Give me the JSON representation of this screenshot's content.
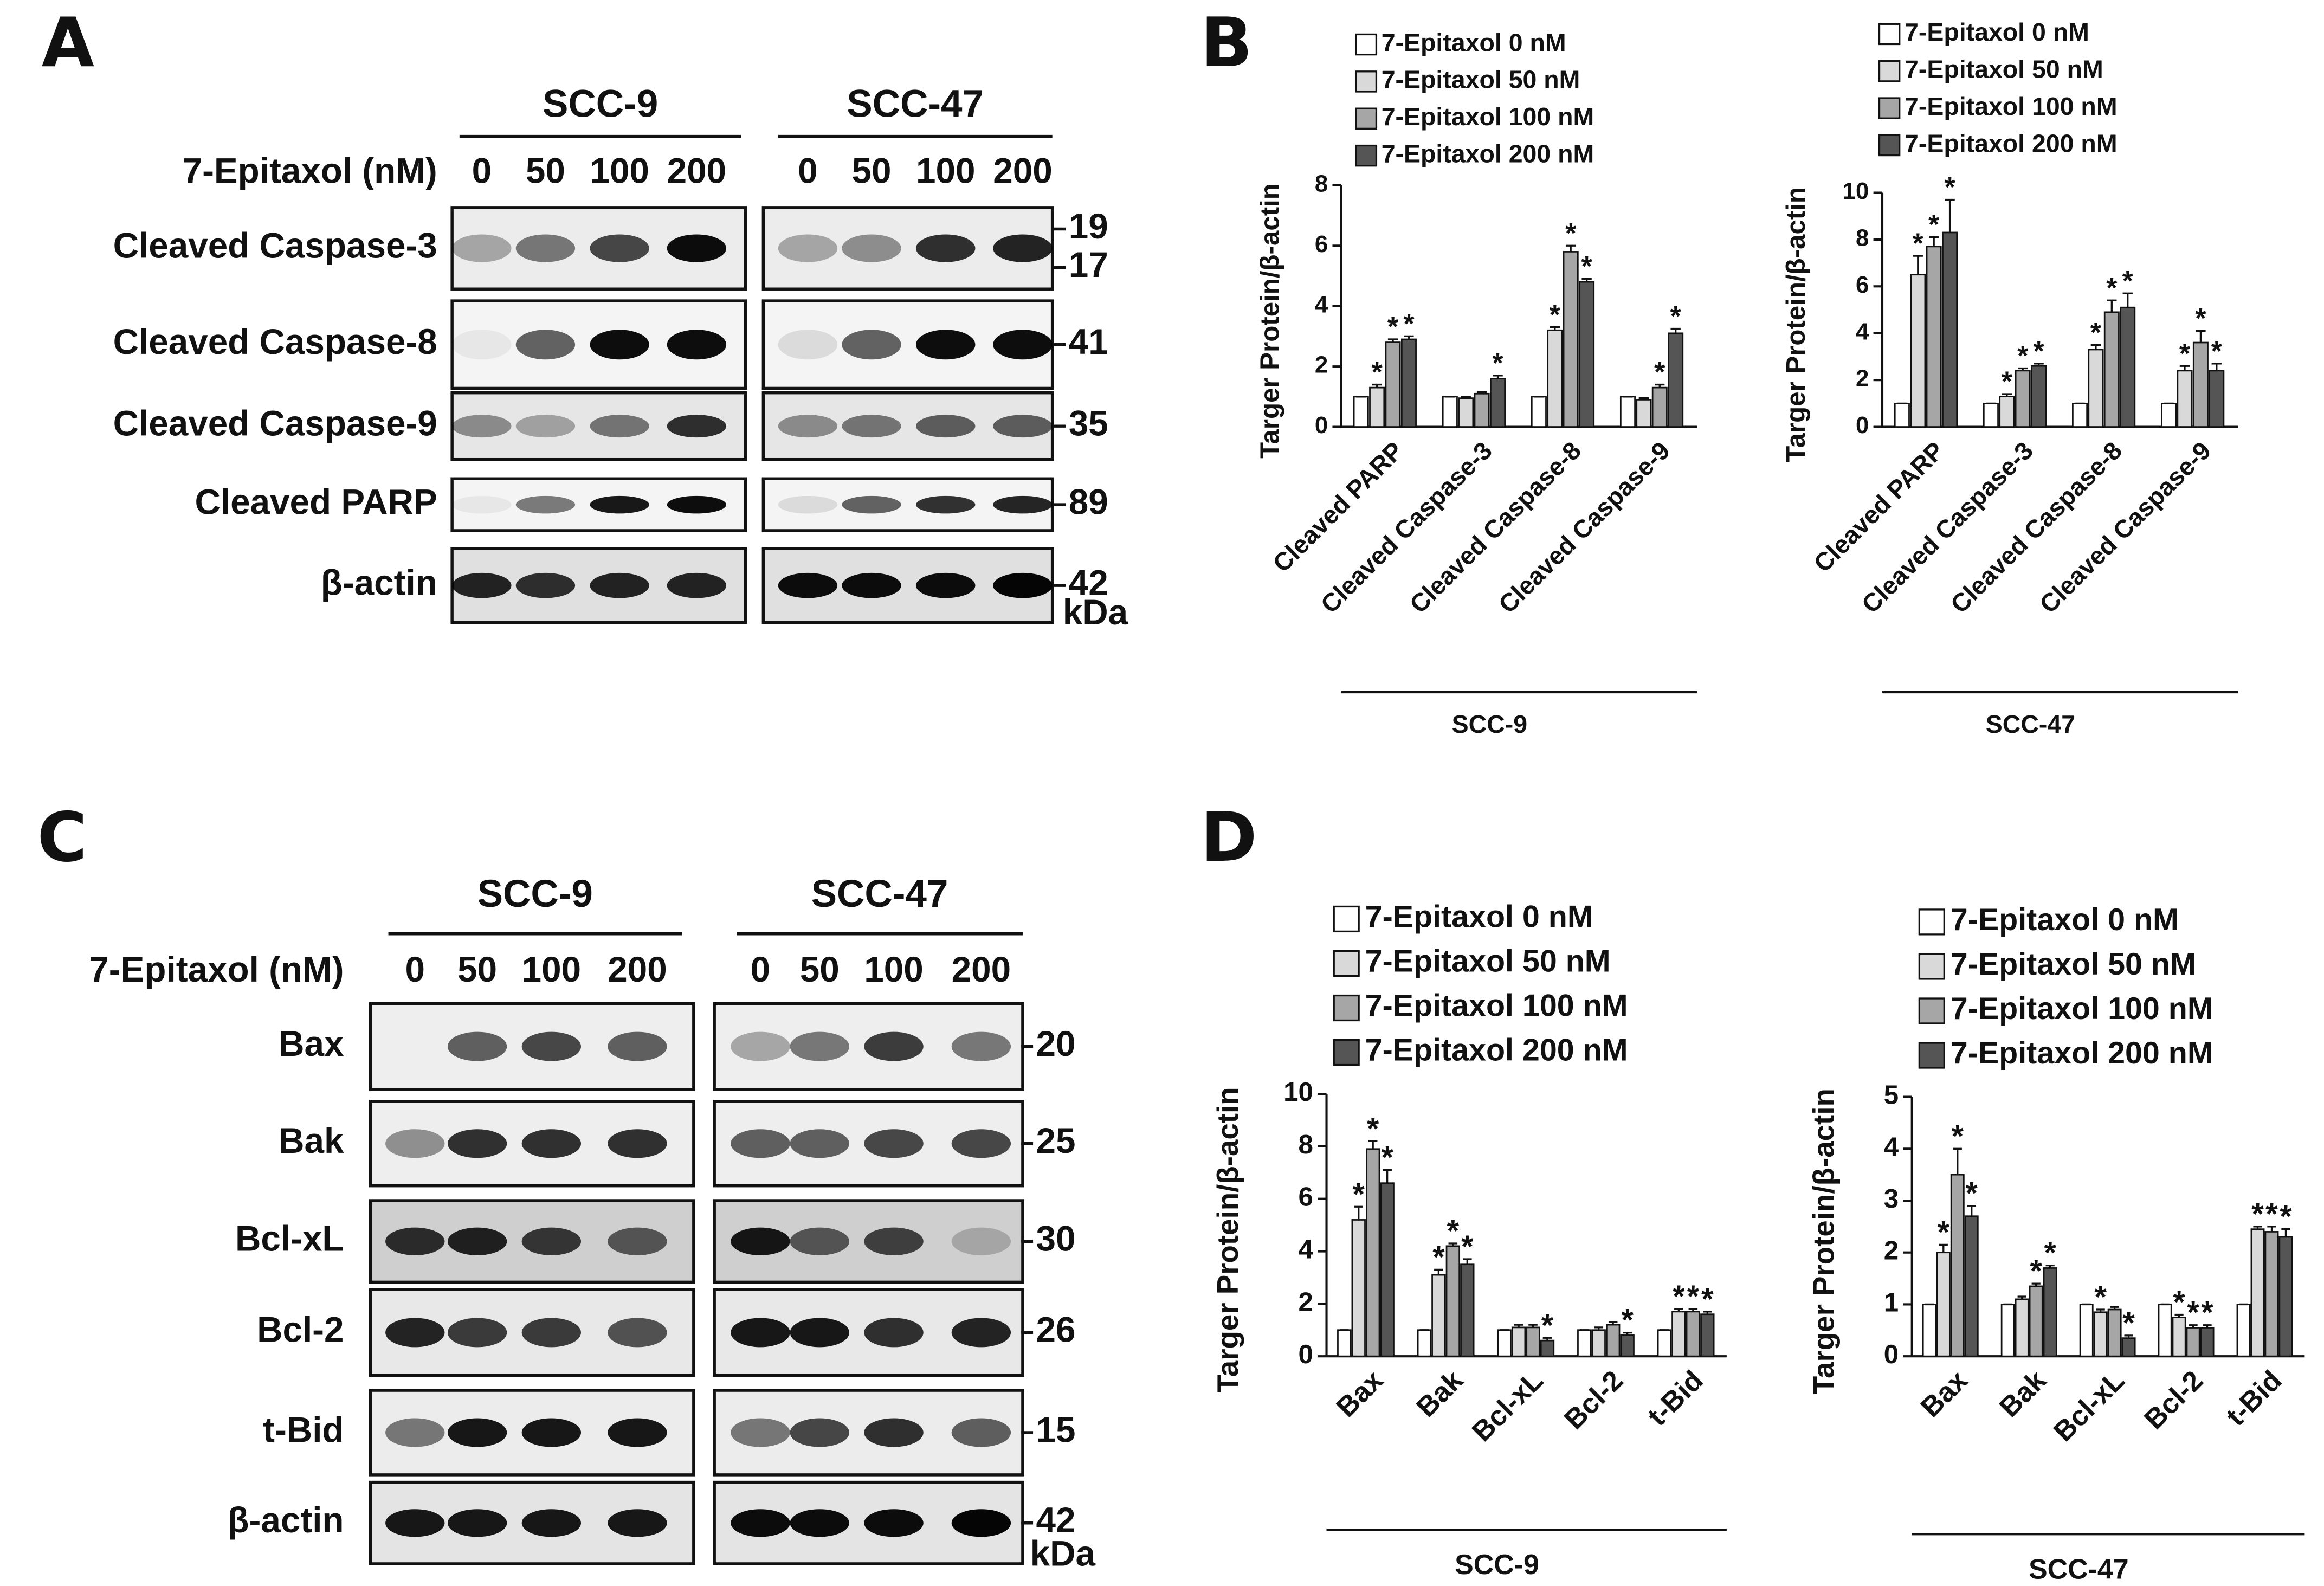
{
  "blots": [
    {
      "panel": "A",
      "cell_lines": [
        "SCC-9",
        "SCC-47"
      ],
      "treatment": "7-Epitaxol (nM)",
      "doses": [
        "0",
        "50",
        "100",
        "200"
      ],
      "rows": [
        {
          "name": "Cleaved Caspase-3",
          "markers": [
            "19",
            "17"
          ]
        },
        {
          "name": "Cleaved Caspase-8",
          "markers": [
            "41"
          ]
        },
        {
          "name": "Cleaved Caspase-9",
          "markers": [
            "35"
          ]
        },
        {
          "name": "Cleaved PARP",
          "markers": [
            "89"
          ]
        },
        {
          "name": "β-actin",
          "markers": [
            "42"
          ]
        }
      ],
      "unit": "kDa"
    },
    {
      "panel": "C",
      "cell_lines": [
        "SCC-9",
        "SCC-47"
      ],
      "treatment": "7-Epitaxol (nM)",
      "doses": [
        "0",
        "50",
        "100",
        "200"
      ],
      "rows": [
        {
          "name": "Bax",
          "markers": [
            "20"
          ]
        },
        {
          "name": "Bak",
          "markers": [
            "25"
          ]
        },
        {
          "name": "Bcl-xL",
          "markers": [
            "30"
          ]
        },
        {
          "name": "Bcl-2",
          "markers": [
            "26"
          ]
        },
        {
          "name": "t-Bid",
          "markers": [
            "15"
          ]
        },
        {
          "name": "β-actin",
          "markers": [
            "42"
          ]
        }
      ],
      "unit": "kDa"
    }
  ],
  "chart_data": [
    {
      "type": "bar",
      "panel": "B",
      "ylabel": "Targer Protein/β-actin",
      "xlabel": "SCC-9",
      "categories": [
        "Cleaved PARP",
        "Cleaved Caspase-3",
        "Cleaved Caspase-8",
        "Cleaved Caspase-9"
      ],
      "series": [
        {
          "name": "7-Epitaxol 0 nM",
          "color": "#ffffff",
          "values": [
            1,
            1,
            1,
            1
          ],
          "errors": [
            0,
            0,
            0,
            0
          ],
          "stars": [
            null,
            null,
            null,
            null
          ]
        },
        {
          "name": "7-Epitaxol 50 nM",
          "color": "#d9d9d9",
          "values": [
            1.3,
            0.95,
            3.2,
            0.9
          ],
          "errors": [
            0.1,
            0.05,
            0.1,
            0.05
          ],
          "stars": [
            "*",
            null,
            "*",
            null
          ]
        },
        {
          "name": "7-Epitaxol 100 nM",
          "color": "#a6a6a6",
          "values": [
            2.8,
            1.1,
            5.8,
            1.3
          ],
          "errors": [
            0.1,
            0.05,
            0.2,
            0.1
          ],
          "stars": [
            "*",
            null,
            "*",
            "*"
          ]
        },
        {
          "name": "7-Epitaxol 200 nM",
          "color": "#555555",
          "values": [
            2.9,
            1.6,
            4.8,
            3.1
          ],
          "errors": [
            0.1,
            0.1,
            0.1,
            0.15
          ],
          "stars": [
            "*",
            "*",
            "*",
            "*"
          ]
        }
      ],
      "ylim": [
        0,
        8
      ],
      "yticks": [
        0,
        2,
        4,
        6,
        8
      ]
    },
    {
      "type": "bar",
      "ylabel": "Targer Protein/β-actin",
      "xlabel": "SCC-47",
      "categories": [
        "Cleaved PARP",
        "Cleaved Caspase-3",
        "Cleaved Caspase-8",
        "Cleaved Caspase-9"
      ],
      "series": [
        {
          "name": "7-Epitaxol 0 nM",
          "color": "#ffffff",
          "values": [
            1,
            1,
            1,
            1
          ],
          "errors": [
            0,
            0,
            0,
            0
          ],
          "stars": [
            null,
            null,
            null,
            null
          ]
        },
        {
          "name": "7-Epitaxol 50 nM",
          "color": "#d9d9d9",
          "values": [
            6.5,
            1.3,
            3.3,
            2.4
          ],
          "errors": [
            0.8,
            0.1,
            0.2,
            0.2
          ],
          "stars": [
            "*",
            "*",
            "*",
            "*"
          ]
        },
        {
          "name": "7-Epitaxol 100 nM",
          "color": "#a6a6a6",
          "values": [
            7.7,
            2.4,
            4.9,
            3.6
          ],
          "errors": [
            0.4,
            0.1,
            0.5,
            0.5
          ],
          "stars": [
            "*",
            "*",
            "*",
            "*"
          ]
        },
        {
          "name": "7-Epitaxol 200 nM",
          "color": "#555555",
          "values": [
            8.3,
            2.6,
            5.1,
            2.4
          ],
          "errors": [
            1.4,
            0.1,
            0.6,
            0.3
          ],
          "stars": [
            "*",
            "*",
            "*",
            "*"
          ]
        }
      ],
      "ylim": [
        0,
        10
      ],
      "yticks": [
        0,
        2,
        4,
        6,
        8,
        10
      ]
    },
    {
      "type": "bar",
      "panel": "D",
      "ylabel": "Targer Protein/β-actin",
      "xlabel": "SCC-9",
      "categories": [
        "Bax",
        "Bak",
        "Bcl-xL",
        "Bcl-2",
        "t-Bid"
      ],
      "series": [
        {
          "name": "7-Epitaxol 0 nM",
          "color": "#ffffff",
          "values": [
            1,
            1,
            1,
            1,
            1
          ],
          "errors": [
            0,
            0,
            0,
            0,
            0
          ],
          "stars": [
            null,
            null,
            null,
            null,
            null
          ]
        },
        {
          "name": "7-Epitaxol 50 nM",
          "color": "#d9d9d9",
          "values": [
            5.2,
            3.1,
            1.1,
            1,
            1.7
          ],
          "errors": [
            0.5,
            0.2,
            0.1,
            0.1,
            0.1
          ],
          "stars": [
            "*",
            "*",
            null,
            null,
            "*"
          ]
        },
        {
          "name": "7-Epitaxol 100 nM",
          "color": "#a6a6a6",
          "values": [
            7.9,
            4.2,
            1.1,
            1.2,
            1.7
          ],
          "errors": [
            0.3,
            0.1,
            0.1,
            0.1,
            0.1
          ],
          "stars": [
            "*",
            "*",
            null,
            null,
            "*"
          ]
        },
        {
          "name": "7-Epitaxol 200 nM",
          "color": "#555555",
          "values": [
            6.6,
            3.5,
            0.6,
            0.8,
            1.6
          ],
          "errors": [
            0.5,
            0.2,
            0.1,
            0.1,
            0.1
          ],
          "stars": [
            "*",
            "*",
            "*",
            "*",
            "*"
          ]
        }
      ],
      "ylim": [
        0,
        10
      ],
      "yticks": [
        0,
        2,
        4,
        6,
        8,
        10
      ]
    },
    {
      "type": "bar",
      "ylabel": "Targer Protein/β-actin",
      "xlabel": "SCC-47",
      "categories": [
        "Bax",
        "Bak",
        "Bcl-xL",
        "Bcl-2",
        "t-Bid"
      ],
      "series": [
        {
          "name": "7-Epitaxol 0 nM",
          "color": "#ffffff",
          "values": [
            1,
            1,
            1,
            1,
            1
          ],
          "errors": [
            0,
            0,
            0,
            0,
            0
          ],
          "stars": [
            null,
            null,
            null,
            null,
            null
          ]
        },
        {
          "name": "7-Epitaxol 50 nM",
          "color": "#d9d9d9",
          "values": [
            2,
            1.1,
            0.85,
            0.75,
            2.45
          ],
          "errors": [
            0.15,
            0.05,
            0.05,
            0.05,
            0.05
          ],
          "stars": [
            "*",
            null,
            "*",
            "*",
            "*"
          ]
        },
        {
          "name": "7-Epitaxol 100 nM",
          "color": "#a6a6a6",
          "values": [
            3.5,
            1.35,
            0.9,
            0.55,
            2.4
          ],
          "errors": [
            0.5,
            0.05,
            0.05,
            0.05,
            0.1
          ],
          "stars": [
            "*",
            "*",
            null,
            "*",
            "*"
          ]
        },
        {
          "name": "7-Epitaxol 200 nM",
          "color": "#555555",
          "values": [
            2.7,
            1.7,
            0.35,
            0.55,
            2.3
          ],
          "errors": [
            0.2,
            0.05,
            0.05,
            0.05,
            0.15
          ],
          "stars": [
            "*",
            "*",
            "*",
            "*",
            "*"
          ]
        }
      ],
      "ylim": [
        0,
        5
      ],
      "yticks": [
        0,
        1,
        2,
        3,
        4,
        5
      ]
    }
  ]
}
